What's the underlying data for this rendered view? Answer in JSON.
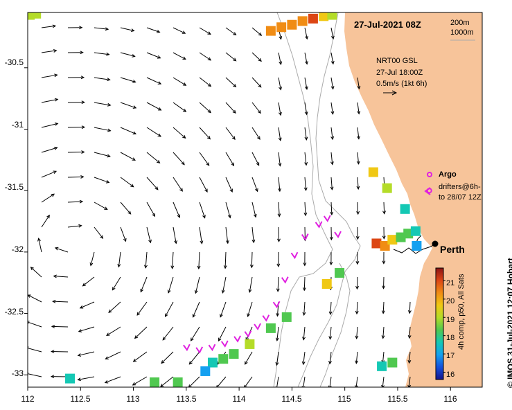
{
  "map": {
    "title": "27-Jul-2021 08Z",
    "isobath_labels": [
      "200m",
      "1000m"
    ],
    "model_info": [
      "NRT00 GSL",
      "27-Jul 18:00Z",
      "0.5m/s (1kt 6h)"
    ],
    "legend": {
      "argo_label": "Argo",
      "drifters_label_line1": "drifters@6h-",
      "drifters_label_line2": "to 28/07 12Z"
    },
    "city": "Perth",
    "colorbar": {
      "caption": "4h comp, p50, All Sats",
      "ticks": [
        "21",
        "20",
        "19",
        "18",
        "17",
        "16"
      ],
      "min": 15.6,
      "max": 21.7,
      "colors": [
        "#14148c",
        "#1450dc",
        "#14a0f0",
        "#14c8b4",
        "#50c850",
        "#b4dc28",
        "#f0c814",
        "#f08c14",
        "#dc4614",
        "#8c1414"
      ]
    },
    "credit": "© IMOS 31-Jul-2021 12:07 Hobart",
    "colors": {
      "land": "#f7c49a",
      "argo": "#e020e0",
      "drifter": "#e020e0",
      "isobath": "#aaaaaa"
    }
  },
  "axes": {
    "x_ticks": [
      "112",
      "112.5",
      "113",
      "113.5",
      "114",
      "114.5",
      "115",
      "115.5",
      "116"
    ],
    "y_ticks": [
      "-30.5",
      "-31",
      "-31.5",
      "-32",
      "-32.5",
      "-33"
    ],
    "lon_range": [
      112,
      116.3
    ],
    "lat_range": [
      -33.1,
      -30.05
    ]
  },
  "sst_patches": [
    {
      "lon": 112.02,
      "lat": -30.07,
      "sst": 18.8
    },
    {
      "lon": 112.08,
      "lat": -30.06,
      "sst": 19.2
    },
    {
      "lon": 114.3,
      "lat": -30.2,
      "sst": 20.3
    },
    {
      "lon": 114.4,
      "lat": -30.17,
      "sst": 20.4
    },
    {
      "lon": 114.5,
      "lat": -30.15,
      "sst": 20.2
    },
    {
      "lon": 114.6,
      "lat": -30.12,
      "sst": 20.3
    },
    {
      "lon": 114.7,
      "lat": -30.1,
      "sst": 20.5
    },
    {
      "lon": 114.8,
      "lat": -30.08,
      "sst": 19.4
    },
    {
      "lon": 114.88,
      "lat": -30.07,
      "sst": 19.0
    },
    {
      "lon": 115.27,
      "lat": -31.35,
      "sst": 19.4
    },
    {
      "lon": 115.4,
      "lat": -31.48,
      "sst": 19.2
    },
    {
      "lon": 115.57,
      "lat": -31.65,
      "sst": 17.5
    },
    {
      "lon": 115.3,
      "lat": -31.93,
      "sst": 20.5
    },
    {
      "lon": 115.38,
      "lat": -31.95,
      "sst": 20.2
    },
    {
      "lon": 115.45,
      "lat": -31.9,
      "sst": 19.5
    },
    {
      "lon": 115.53,
      "lat": -31.88,
      "sst": 18.5
    },
    {
      "lon": 115.6,
      "lat": -31.85,
      "sst": 18.2
    },
    {
      "lon": 115.67,
      "lat": -31.83,
      "sst": 18.0
    },
    {
      "lon": 115.68,
      "lat": -31.95,
      "sst": 17.0
    },
    {
      "lon": 114.95,
      "lat": -32.17,
      "sst": 18.6
    },
    {
      "lon": 114.83,
      "lat": -32.26,
      "sst": 19.8
    },
    {
      "lon": 114.45,
      "lat": -32.53,
      "sst": 18.5
    },
    {
      "lon": 114.3,
      "lat": -32.62,
      "sst": 18.6
    },
    {
      "lon": 114.1,
      "lat": -32.75,
      "sst": 19.0
    },
    {
      "lon": 113.95,
      "lat": -32.83,
      "sst": 18.4
    },
    {
      "lon": 113.85,
      "lat": -32.87,
      "sst": 18.2
    },
    {
      "lon": 113.75,
      "lat": -32.9,
      "sst": 18.0
    },
    {
      "lon": 113.68,
      "lat": -32.97,
      "sst": 17.3
    },
    {
      "lon": 115.35,
      "lat": -32.93,
      "sst": 18.0
    },
    {
      "lon": 115.45,
      "lat": -32.9,
      "sst": 18.3
    },
    {
      "lon": 112.4,
      "lat": -33.03,
      "sst": 17.5
    },
    {
      "lon": 113.2,
      "lat": -33.06,
      "sst": 18.2
    },
    {
      "lon": 113.42,
      "lat": -33.06,
      "sst": 18.4
    }
  ],
  "drifters": [
    {
      "lon": 113.5,
      "lat": -32.78
    },
    {
      "lon": 113.62,
      "lat": -32.8
    },
    {
      "lon": 113.74,
      "lat": -32.78
    },
    {
      "lon": 113.86,
      "lat": -32.75
    },
    {
      "lon": 113.98,
      "lat": -32.71
    },
    {
      "lon": 114.08,
      "lat": -32.67
    },
    {
      "lon": 114.17,
      "lat": -32.61
    },
    {
      "lon": 114.25,
      "lat": -32.54
    },
    {
      "lon": 114.35,
      "lat": -32.43
    },
    {
      "lon": 114.43,
      "lat": -32.23
    },
    {
      "lon": 114.52,
      "lat": -32.03
    },
    {
      "lon": 114.62,
      "lat": -31.88
    },
    {
      "lon": 114.75,
      "lat": -31.78
    },
    {
      "lon": 114.83,
      "lat": -31.73
    },
    {
      "lon": 114.93,
      "lat": -31.86
    }
  ],
  "argo": [
    {
      "lon": 115.8,
      "lat": -31.5
    }
  ]
}
